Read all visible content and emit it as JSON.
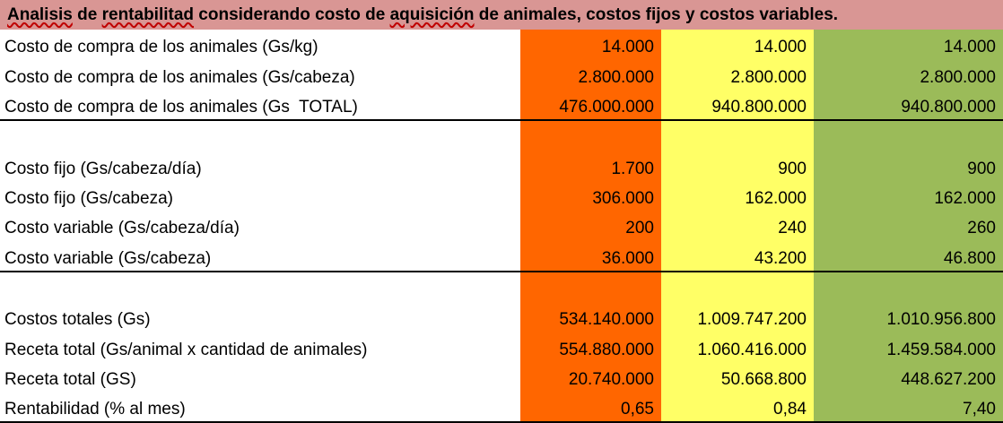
{
  "title": {
    "text": "Analisis de rentabilitad considerando costo de aquisición de animales, costos fijos y costos variables.",
    "segments": [
      {
        "text": "Analisis",
        "misspelled": true
      },
      {
        "text": " de ",
        "misspelled": false
      },
      {
        "text": "rentabilitad",
        "misspelled": true
      },
      {
        "text": " considerando costo de ",
        "misspelled": false
      },
      {
        "text": "aquisición",
        "misspelled": true
      },
      {
        "text": " de animales, costos fijos y costos variables.",
        "misspelled": false
      }
    ]
  },
  "colors": {
    "title_bg": "#D99694",
    "column_1_bg": "#FF6600",
    "column_2_bg": "#FFFF66",
    "column_3_bg": "#9BBB59",
    "label_bg": "#FFFFFF",
    "text": "#000000",
    "spellcheck_squiggle": "#C00000",
    "section_divider": "#000000"
  },
  "table": {
    "rows": [
      {
        "label": "Costo de compra de los animales (Gs/kg)",
        "values": [
          "14.000",
          "14.000",
          "14.000"
        ],
        "empty": false,
        "section_end": false
      },
      {
        "label": "Costo de compra de los animales (Gs/cabeza)",
        "values": [
          "2.800.000",
          "2.800.000",
          "2.800.000"
        ],
        "empty": false,
        "section_end": false
      },
      {
        "label": "Costo de compra de los animales (Gs  TOTAL)",
        "values": [
          "476.000.000",
          "940.800.000",
          "940.800.000"
        ],
        "empty": false,
        "section_end": true
      },
      {
        "label": "",
        "values": [
          "",
          "",
          ""
        ],
        "empty": true,
        "section_end": false
      },
      {
        "label": "Costo fijo (Gs/cabeza/día)",
        "values": [
          "1.700",
          "900",
          "900"
        ],
        "empty": false,
        "section_end": false
      },
      {
        "label": "Costo fijo (Gs/cabeza)",
        "values": [
          "306.000",
          "162.000",
          "162.000"
        ],
        "empty": false,
        "section_end": false
      },
      {
        "label": "Costo variable (Gs/cabeza/día)",
        "values": [
          "200",
          "240",
          "260"
        ],
        "empty": false,
        "section_end": false
      },
      {
        "label": "Costo variable (Gs/cabeza)",
        "values": [
          "36.000",
          "43.200",
          "46.800"
        ],
        "empty": false,
        "section_end": true
      },
      {
        "label": "",
        "values": [
          "",
          "",
          ""
        ],
        "empty": true,
        "section_end": false
      },
      {
        "label": "Costos totales (Gs)",
        "values": [
          "534.140.000",
          "1.009.747.200",
          "1.010.956.800"
        ],
        "empty": false,
        "section_end": false
      },
      {
        "label": "Receta total (Gs/animal x cantidad de animales)",
        "values": [
          "554.880.000",
          "1.060.416.000",
          "1.459.584.000"
        ],
        "empty": false,
        "section_end": false
      },
      {
        "label": "Receta total (GS)",
        "values": [
          "20.740.000",
          "50.668.800",
          "448.627.200"
        ],
        "empty": false,
        "section_end": false
      },
      {
        "label": "Rentabilidad (% al mes)",
        "values": [
          "0,65",
          "0,84",
          "7,40"
        ],
        "empty": false,
        "section_end": true
      }
    ]
  }
}
